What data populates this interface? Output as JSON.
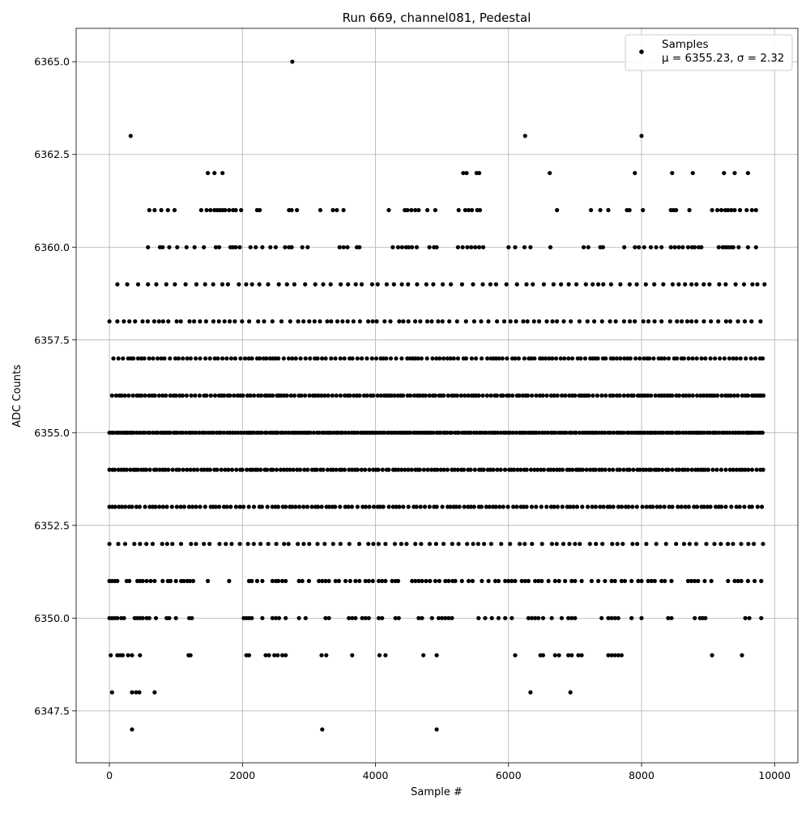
{
  "chart_data": {
    "type": "scatter",
    "title": "Run 669, channel081, Pedestal",
    "xlabel": "Sample #",
    "ylabel": "ADC Counts",
    "xlim": [
      -500,
      10350
    ],
    "ylim": [
      6346.1,
      6365.9
    ],
    "xticks": [
      0,
      2000,
      4000,
      6000,
      8000,
      10000
    ],
    "xtick_labels": [
      "0",
      "2000",
      "4000",
      "6000",
      "8000",
      "10000"
    ],
    "yticks": [
      6347.5,
      6350.0,
      6352.5,
      6355.0,
      6357.5,
      6360.0,
      6362.5,
      6365.0
    ],
    "ytick_labels": [
      "6347.5",
      "6350.0",
      "6352.5",
      "6355.0",
      "6357.5",
      "6360.0",
      "6362.5",
      "6365.0"
    ],
    "grid": true,
    "legend": {
      "position": "top-right",
      "entries": [
        "Samples"
      ],
      "stats_text": "μ = 6355.23, σ = 2.32"
    },
    "marker_color": "#000000",
    "x_range": [
      0,
      9850
    ],
    "series": [
      {
        "name": "Samples",
        "rows": [
          {
            "y": 6365,
            "x": [
              2750
            ]
          },
          {
            "y": 6363,
            "x": [
              320,
              6250,
              8000
            ]
          },
          {
            "y": 6362,
            "x": [
              1480,
              1580,
              1700,
              5320,
              5370,
              5520,
              5560,
              6620,
              7900,
              8460,
              8770,
              9240,
              9400,
              9600
            ]
          },
          {
            "y": 6361,
            "x": [
              600,
              680,
              780,
              880,
              980,
              1380,
              1460,
              1520,
              1580,
              1620,
              1660,
              1700,
              1740,
              1800,
              1860,
              1900,
              1980,
              2220,
              2260,
              2700,
              2740,
              2820,
              3170,
              3360,
              3420,
              3520,
              4200,
              4440,
              4480,
              4540,
              4600,
              4650,
              4780,
              4900,
              5250,
              5350,
              5400,
              5450,
              5530,
              5570,
              6730,
              7240,
              7380,
              7500,
              7780,
              7820,
              8020,
              8440,
              8480,
              8520,
              8720,
              9060,
              9140,
              9200,
              9260,
              9300,
              9350,
              9400,
              9480,
              9580,
              9660,
              9720
            ]
          },
          {
            "y": 6360,
            "x": [
              580,
              760,
              800,
              900,
              1020,
              1160,
              1280,
              1420,
              1600,
              1650,
              1820,
              1860,
              1900,
              1960,
              2120,
              2200,
              2300,
              2420,
              2500,
              2640,
              2700,
              2740,
              2900,
              2980,
              3460,
              3520,
              3580,
              3720,
              3760,
              4260,
              4340,
              4400,
              4460,
              4500,
              4550,
              4620,
              4810,
              4880,
              4920,
              5240,
              5310,
              5380,
              5440,
              5500,
              5560,
              5620,
              6000,
              6100,
              6240,
              6330,
              6630,
              7130,
              7200,
              7380,
              7420,
              7740,
              7900,
              7960,
              8040,
              8140,
              8220,
              8300,
              8440,
              8500,
              8560,
              8620,
              8700,
              8760,
              8800,
              8860,
              8900,
              9160,
              9220,
              9260,
              9300,
              9340,
              9380,
              9460,
              9600,
              9720
            ]
          },
          {
            "y": 6359,
            "x_range": [
              120,
              9850
            ],
            "gap": 10
          },
          {
            "y": 6358,
            "x_range": [
              0,
              9850
            ],
            "gap": 8
          },
          {
            "y": 6357,
            "x_range": [
              60,
              9850
            ],
            "gap": 5
          },
          {
            "y": 6356,
            "x_range": [
              40,
              9850
            ],
            "gap": 4
          },
          {
            "y": 6355,
            "x_range": [
              0,
              9850
            ],
            "gap": 3
          },
          {
            "y": 6354,
            "x_range": [
              0,
              9850
            ],
            "gap": 4
          },
          {
            "y": 6353,
            "x_range": [
              0,
              9850
            ],
            "gap": 5
          },
          {
            "y": 6352,
            "x_range": [
              0,
              9850
            ],
            "gap": 9
          },
          {
            "y": 6351,
            "x": [
              0,
              40,
              80,
              120,
              260,
              300,
              420,
              460,
              500,
              560,
              620,
              680,
              800,
              880,
              920,
              1000,
              1080,
              1120,
              1170,
              1210,
              1260,
              1480,
              1800,
              2100,
              2140,
              2220,
              2300,
              2450,
              2500,
              2540,
              2600,
              2650,
              2850,
              2900,
              3000,
              3150,
              3200,
              3250,
              3300,
              3400,
              3450,
              3550,
              3620,
              3700,
              3760,
              3850,
              3900,
              3960,
              4050,
              4100,
              4150,
              4250,
              4300,
              4340,
              4550,
              4600,
              4650,
              4700,
              4760,
              4820,
              4900,
              4960,
              5050,
              5100,
              5160,
              5200,
              5300,
              5400,
              5460,
              5600,
              5700,
              5800,
              5850,
              5950,
              6000,
              6050,
              6100,
              6200,
              6250,
              6300,
              6400,
              6450,
              6500,
              6600,
              6700,
              6760,
              6850,
              6950,
              7000,
              7100,
              7250,
              7350,
              7450,
              7550,
              7600,
              7700,
              7750,
              7850,
              7950,
              8000,
              8100,
              8150,
              8200,
              8300,
              8350,
              8450,
              8700,
              8750,
              8800,
              8850,
              8950,
              9050,
              9300,
              9400,
              9450,
              9500,
              9600,
              9700,
              9800
            ]
          },
          {
            "y": 6350,
            "x": [
              0,
              40,
              80,
              120,
              180,
              220,
              380,
              420,
              460,
              500,
              560,
              600,
              700,
              860,
              900,
              1000,
              1200,
              1240,
              2020,
              2060,
              2100,
              2140,
              2300,
              2450,
              2500,
              2550,
              2650,
              2850,
              2950,
              3250,
              3300,
              3600,
              3650,
              3700,
              3800,
              3850,
              3900,
              4050,
              4100,
              4300,
              4350,
              4650,
              4700,
              4850,
              4950,
              5000,
              5050,
              5100,
              5150,
              5550,
              5650,
              5750,
              5850,
              5950,
              6050,
              6300,
              6350,
              6400,
              6450,
              6520,
              6650,
              6800,
              6900,
              6950,
              7000,
              7400,
              7500,
              7550,
              7600,
              7650,
              7850,
              8000,
              8400,
              8450,
              8800,
              8880,
              8920,
              8960,
              9560,
              9620,
              9800
            ]
          },
          {
            "y": 6349,
            "x": [
              20,
              120,
              160,
              200,
              280,
              340,
              460,
              1190,
              1220,
              2060,
              2100,
              2350,
              2400,
              2480,
              2530,
              2600,
              2650,
              3190,
              3260,
              3650,
              4060,
              4150,
              4720,
              4920,
              6100,
              6480,
              6520,
              6700,
              6760,
              6900,
              6950,
              7050,
              7100,
              7500,
              7550,
              7600,
              7650,
              7700,
              9060,
              9510
            ]
          },
          {
            "y": 6348,
            "x": [
              40,
              340,
              400,
              450,
              680,
              6330,
              6930
            ]
          },
          {
            "y": 6347,
            "x": [
              340,
              3200,
              4920
            ]
          }
        ]
      }
    ]
  }
}
